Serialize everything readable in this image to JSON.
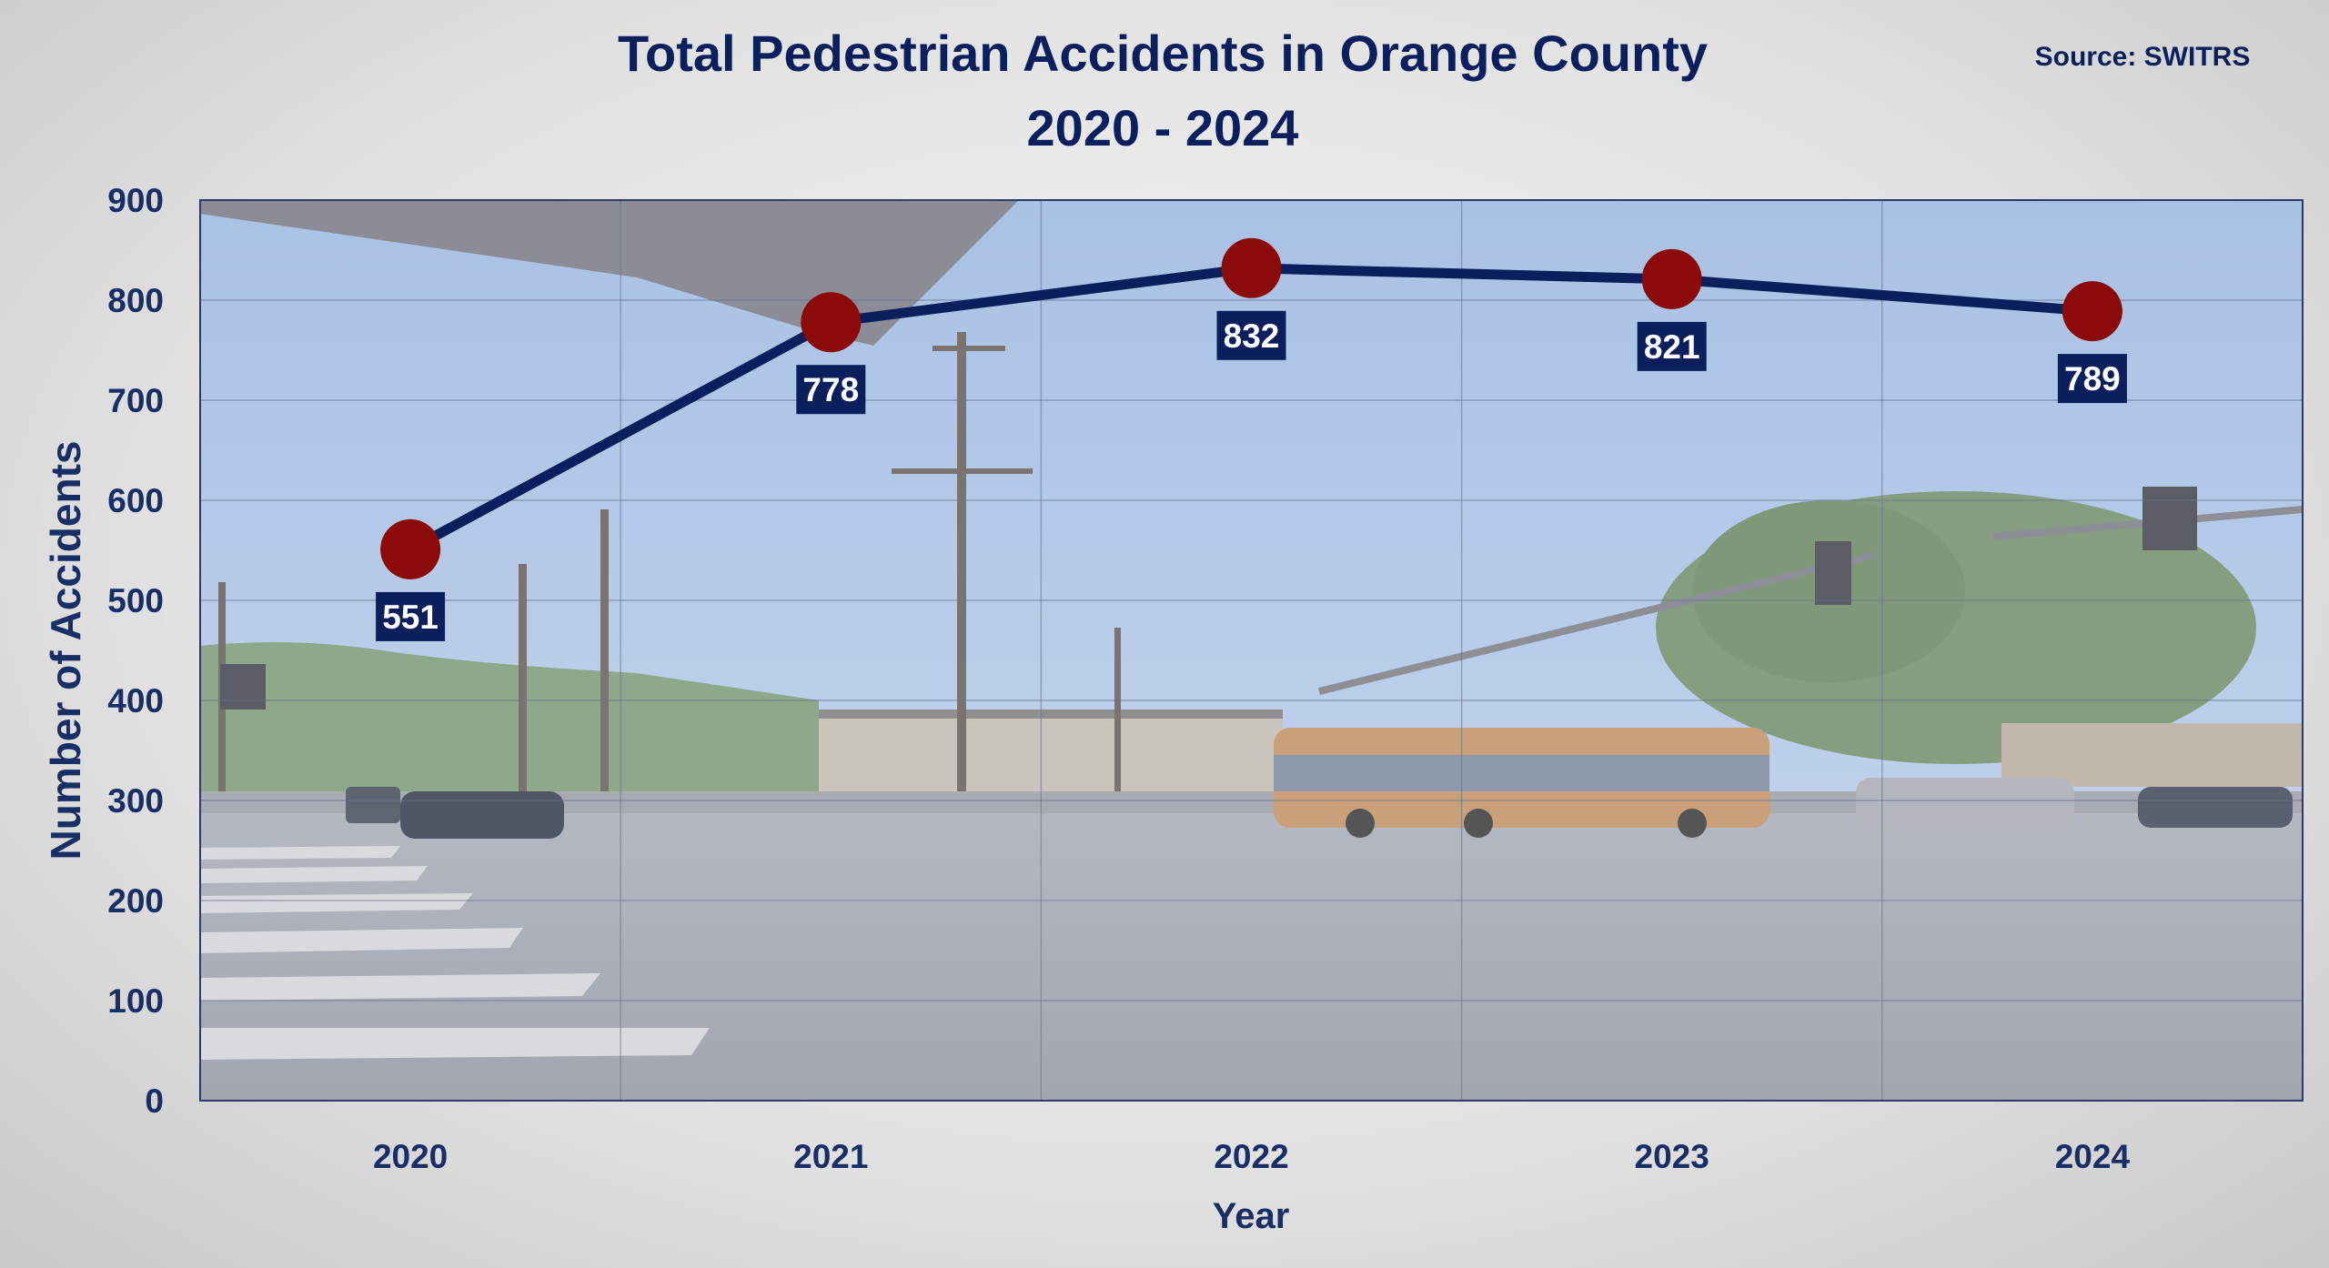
{
  "chart_data": {
    "type": "line",
    "title_line1": "Total Pedestrian Accidents in Orange County",
    "title_line2": "2020 - 2024",
    "source": "Source: SWITRS",
    "xlabel": "Year",
    "ylabel": "Number of Accidents",
    "categories": [
      "2020",
      "2021",
      "2022",
      "2023",
      "2024"
    ],
    "values": [
      551,
      778,
      832,
      821,
      789
    ],
    "data_labels": [
      "551",
      "778",
      "832",
      "821",
      "789"
    ],
    "ylim": [
      0,
      900
    ],
    "yticks": [
      0,
      100,
      200,
      300,
      400,
      500,
      600,
      700,
      800,
      900
    ],
    "ytick_labels": [
      "0",
      "100",
      "200",
      "300",
      "400",
      "500",
      "600",
      "700",
      "800",
      "900"
    ],
    "grid": true,
    "colors": {
      "line": "#0a1f5c",
      "marker": "#8b0a0a",
      "label_bg": "#0a1f5c",
      "label_text": "#ffffff",
      "text": "#1a2e66"
    },
    "background": "street-intersection-photo"
  }
}
